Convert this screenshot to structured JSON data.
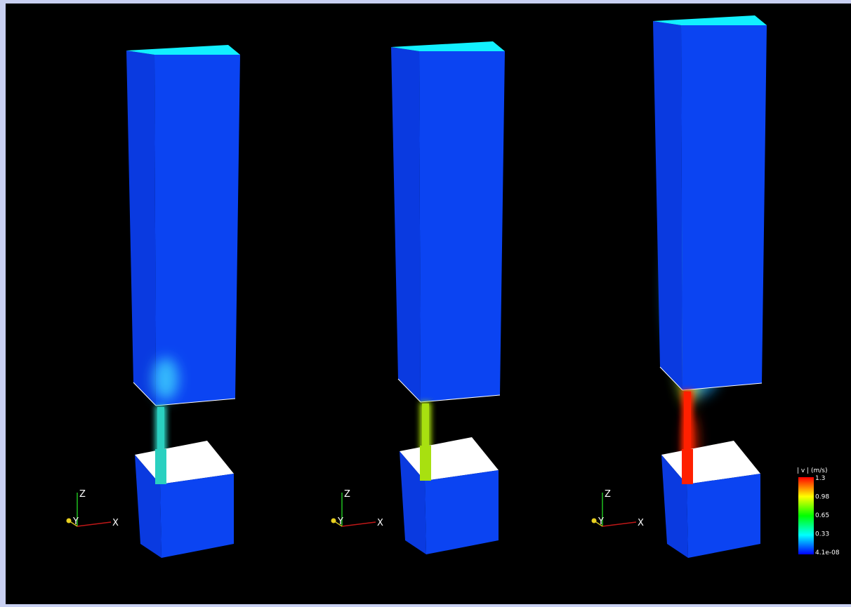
{
  "panels": [
    {
      "axes": {
        "z": "Z",
        "y": "Y",
        "x": "X"
      }
    },
    {
      "axes": {
        "z": "Z",
        "y": "Y",
        "x": "X"
      }
    },
    {
      "axes": {
        "z": "Z",
        "y": "Y",
        "x": "X"
      }
    }
  ],
  "colorbar": {
    "title": "| v | (m/s)",
    "labels": [
      "1.3",
      "0.98",
      "0.65",
      "0.33",
      "4.1e-08"
    ]
  }
}
